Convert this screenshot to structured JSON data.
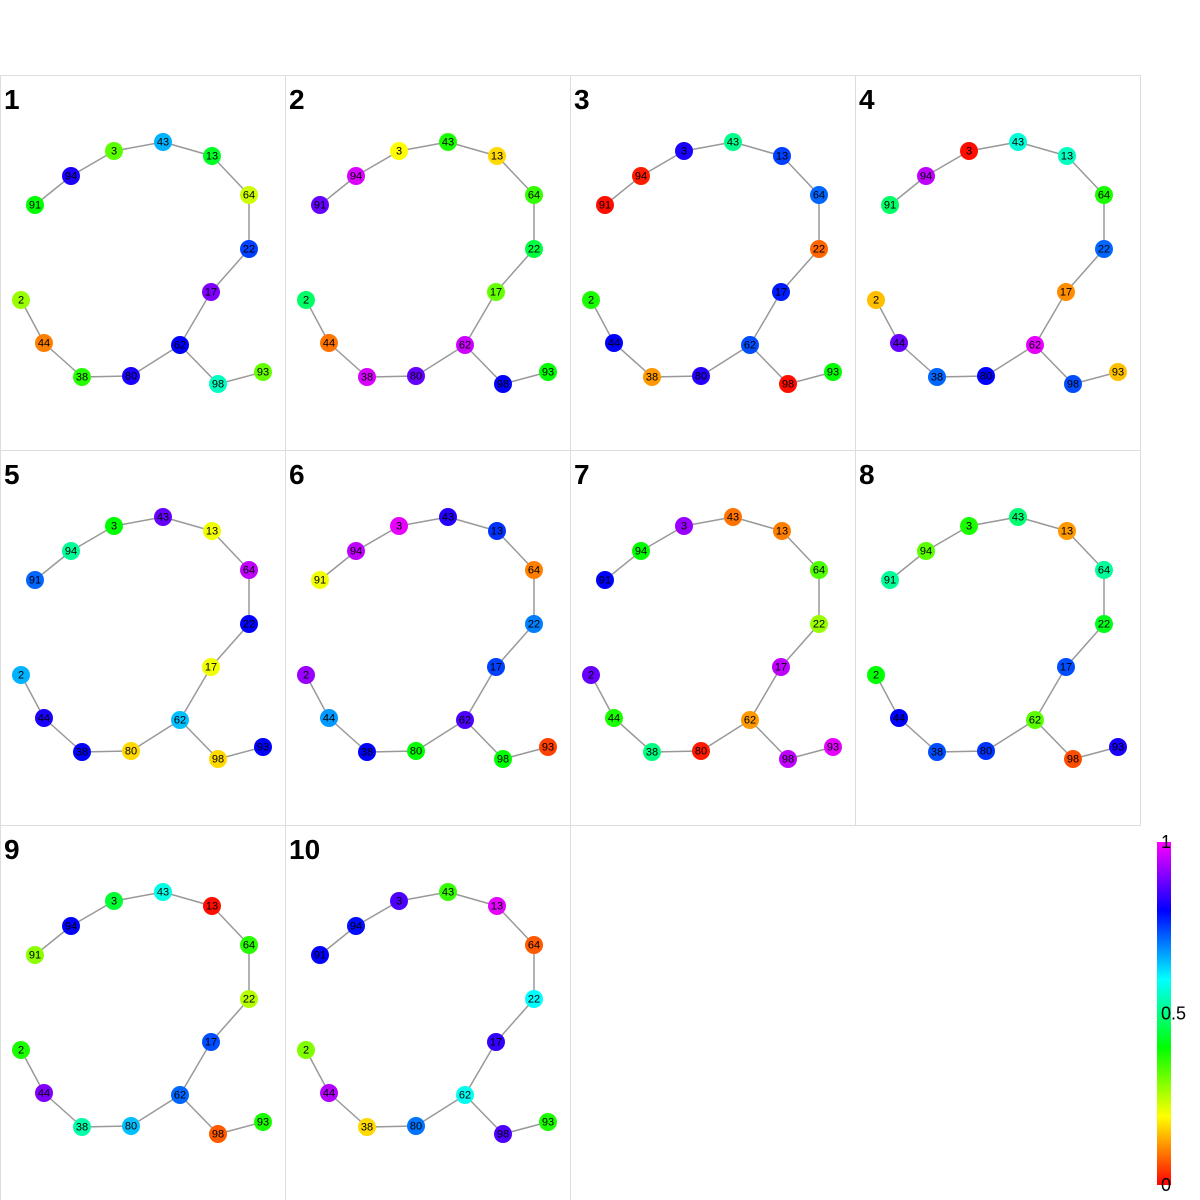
{
  "colors": {
    "edge": "#999999",
    "panel_border": "#dddddd",
    "scale": [
      "#ff0000",
      "#ff8000",
      "#ffff00",
      "#80ff00",
      "#00ff00",
      "#00ff80",
      "#00ffff",
      "#0080ff",
      "#0000ff",
      "#8000ff",
      "#ff00ff"
    ]
  },
  "graph": {
    "nodes": [
      "91",
      "94",
      "3",
      "43",
      "13",
      "64",
      "22",
      "17",
      "2",
      "44",
      "38",
      "80",
      "62",
      "98",
      "93"
    ],
    "edges": [
      [
        "91",
        "94"
      ],
      [
        "94",
        "3"
      ],
      [
        "3",
        "43"
      ],
      [
        "43",
        "13"
      ],
      [
        "13",
        "64"
      ],
      [
        "64",
        "22"
      ],
      [
        "22",
        "17"
      ],
      [
        "17",
        "62"
      ],
      [
        "2",
        "44"
      ],
      [
        "44",
        "38"
      ],
      [
        "38",
        "80"
      ],
      [
        "80",
        "62"
      ],
      [
        "62",
        "98"
      ],
      [
        "98",
        "93"
      ]
    ]
  },
  "panels": [
    {
      "label": "1",
      "values": {
        "91": 0.4,
        "94": 0.82,
        "3": 0.33,
        "43": 0.66,
        "13": 0.43,
        "64": 0.24,
        "22": 0.75,
        "17": 0.9,
        "2": 0.28,
        "44": 0.1,
        "38": 0.37,
        "80": 0.82,
        "62": 0.8,
        "98": 0.55,
        "93": 0.32
      }
    },
    {
      "label": "2",
      "values": {
        "91": 0.88,
        "94": 0.97,
        "3": 0.2,
        "43": 0.38,
        "13": 0.17,
        "64": 0.36,
        "22": 0.45,
        "17": 0.32,
        "2": 0.48,
        "44": 0.09,
        "38": 0.97,
        "80": 0.88,
        "62": 0.96,
        "98": 0.8,
        "93": 0.4
      }
    },
    {
      "label": "3",
      "values": {
        "91": 0.01,
        "94": 0.02,
        "3": 0.82,
        "43": 0.51,
        "13": 0.75,
        "64": 0.72,
        "22": 0.08,
        "17": 0.78,
        "2": 0.38,
        "44": 0.8,
        "38": 0.12,
        "80": 0.83,
        "62": 0.74,
        "98": 0.01,
        "93": 0.4
      }
    },
    {
      "label": "4",
      "values": {
        "91": 0.48,
        "94": 0.95,
        "3": 0.01,
        "43": 0.57,
        "13": 0.55,
        "64": 0.38,
        "22": 0.72,
        "17": 0.11,
        "2": 0.15,
        "44": 0.88,
        "38": 0.72,
        "80": 0.8,
        "62": 0.98,
        "98": 0.74,
        "93": 0.15
      }
    },
    {
      "label": "5",
      "values": {
        "91": 0.72,
        "94": 0.52,
        "3": 0.4,
        "43": 0.88,
        "13": 0.21,
        "64": 0.95,
        "22": 0.8,
        "17": 0.21,
        "2": 0.66,
        "44": 0.82,
        "38": 0.8,
        "80": 0.17,
        "62": 0.65,
        "98": 0.17,
        "93": 0.8
      }
    },
    {
      "label": "6",
      "values": {
        "91": 0.21,
        "94": 0.95,
        "3": 0.98,
        "43": 0.83,
        "13": 0.76,
        "64": 0.1,
        "22": 0.7,
        "17": 0.75,
        "2": 0.92,
        "44": 0.68,
        "38": 0.8,
        "80": 0.4,
        "62": 0.86,
        "98": 0.4,
        "93": 0.05
      }
    },
    {
      "label": "7",
      "values": {
        "91": 0.8,
        "94": 0.4,
        "3": 0.92,
        "43": 0.09,
        "13": 0.1,
        "64": 0.34,
        "22": 0.28,
        "17": 0.95,
        "2": 0.88,
        "44": 0.38,
        "38": 0.5,
        "80": 0.02,
        "62": 0.12,
        "98": 0.95,
        "93": 0.98
      }
    },
    {
      "label": "8",
      "values": {
        "91": 0.52,
        "94": 0.33,
        "3": 0.38,
        "43": 0.49,
        "13": 0.12,
        "64": 0.52,
        "22": 0.42,
        "17": 0.74,
        "2": 0.4,
        "44": 0.8,
        "38": 0.74,
        "80": 0.76,
        "62": 0.33,
        "98": 0.06,
        "93": 0.82
      }
    },
    {
      "label": "9",
      "values": {
        "91": 0.29,
        "94": 0.8,
        "3": 0.44,
        "43": 0.58,
        "13": 0.01,
        "64": 0.37,
        "22": 0.26,
        "17": 0.74,
        "2": 0.38,
        "44": 0.9,
        "38": 0.53,
        "80": 0.65,
        "62": 0.72,
        "98": 0.07,
        "93": 0.38
      }
    },
    {
      "label": "10",
      "values": {
        "91": 0.8,
        "94": 0.79,
        "3": 0.86,
        "43": 0.36,
        "13": 0.98,
        "64": 0.07,
        "22": 0.6,
        "17": 0.84,
        "2": 0.3,
        "44": 0.94,
        "38": 0.17,
        "80": 0.71,
        "62": 0.59,
        "98": 0.86,
        "93": 0.38
      }
    }
  ],
  "colorbar": {
    "labels": [
      {
        "text": "1",
        "value": 1
      },
      {
        "text": "0.5",
        "value": 0.5
      },
      {
        "text": "0",
        "value": 0
      }
    ]
  }
}
